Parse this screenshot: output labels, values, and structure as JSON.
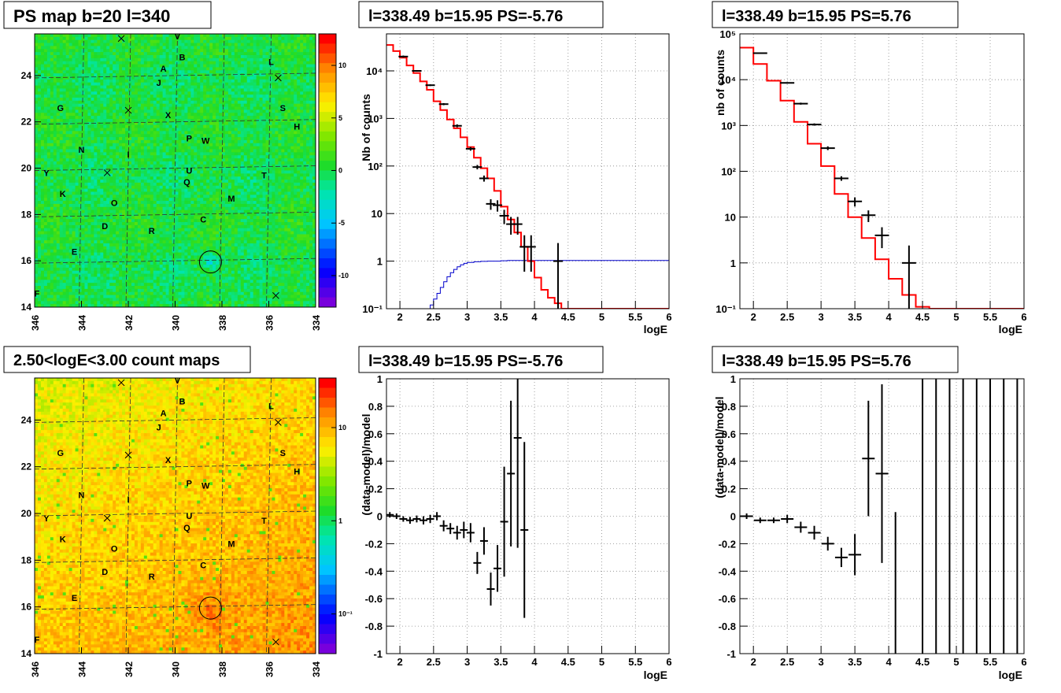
{
  "colors": {
    "frame": "#000000",
    "data_points": "#000000",
    "model_line": "#ff0000",
    "signal_line": "#0000cc",
    "ps_map_base": "#22dd22",
    "count_map_base": "#ff6a1a"
  },
  "panels": {
    "ps_map": {
      "title": "PS map b=20 l=340",
      "x_ticks": [
        "346",
        "344",
        "342",
        "340",
        "338",
        "336",
        "334"
      ],
      "y_ticks": [
        "14",
        "16",
        "18",
        "20",
        "22",
        "24"
      ],
      "colorbar_ticks": [
        "10",
        "5",
        "0",
        "-5",
        "-10"
      ]
    },
    "count_map": {
      "title": "2.50<logE<3.00 count maps",
      "x_ticks": [
        "346",
        "344",
        "342",
        "340",
        "338",
        "336",
        "334"
      ],
      "y_ticks": [
        "14",
        "16",
        "18",
        "20",
        "22",
        "24"
      ],
      "colorbar_ticks": [
        "10",
        "1",
        "10⁻¹"
      ]
    },
    "spectrum_left": {
      "title": "l=338.49 b=15.95 PS=-5.76",
      "xlabel": "logE",
      "ylabel": "Nb of counts",
      "x_ticks": [
        "2",
        "2.5",
        "3",
        "3.5",
        "4",
        "4.5",
        "5",
        "5.5",
        "6"
      ],
      "y_ticks": [
        "10⁻¹",
        "1",
        "10",
        "10²",
        "10³",
        "10⁴"
      ]
    },
    "spectrum_right": {
      "title": "l=338.49 b=15.95 PS=5.76",
      "xlabel": "logE",
      "ylabel": "nb of counts",
      "x_ticks": [
        "2",
        "2.5",
        "3",
        "3.5",
        "4",
        "4.5",
        "5",
        "5.5",
        "6"
      ],
      "y_ticks": [
        "10⁻¹",
        "1",
        "10",
        "10²",
        "10³",
        "10⁴",
        "10⁵"
      ]
    },
    "residual_left": {
      "title": "l=338.49 b=15.95 PS=-5.76",
      "xlabel": "logE",
      "ylabel": "(data-model)/model",
      "x_ticks": [
        "2",
        "2.5",
        "3",
        "3.5",
        "4",
        "4.5",
        "5",
        "5.5",
        "6"
      ],
      "y_ticks": [
        "-1",
        "-0.8",
        "-0.6",
        "-0.4",
        "-0.2",
        "0",
        "0.2",
        "0.4",
        "0.6",
        "0.8",
        "1"
      ]
    },
    "residual_right": {
      "title": "l=338.49 b=15.95 PS=5.76",
      "xlabel": "logE",
      "ylabel": "(data-model)/model",
      "x_ticks": [
        "2",
        "2.5",
        "3",
        "3.5",
        "4",
        "4.5",
        "5",
        "5.5",
        "6"
      ],
      "y_ticks": [
        "-1",
        "-0.8",
        "-0.6",
        "-0.4",
        "-0.2",
        "0",
        "0.2",
        "0.4",
        "0.6",
        "0.8",
        "1"
      ]
    }
  },
  "chart_data": [
    {
      "id": "ps_map",
      "type": "heatmap",
      "title": "PS map b=20 l=340",
      "xlim": [
        346,
        334
      ],
      "ylim": [
        14,
        25.8
      ],
      "zlim": [
        -13,
        13
      ],
      "colorbar_ticks": [
        10,
        5,
        0,
        -5,
        -10
      ],
      "circle": {
        "l": 338.49,
        "b": 15.95
      },
      "labels": [
        {
          "t": "V",
          "l": 339.9,
          "b": 25.7
        },
        {
          "t": "B",
          "l": 339.7,
          "b": 24.8
        },
        {
          "t": "A",
          "l": 340.5,
          "b": 24.3
        },
        {
          "t": "L",
          "l": 335.9,
          "b": 24.6
        },
        {
          "t": "J",
          "l": 340.7,
          "b": 23.7
        },
        {
          "t": "G",
          "l": 344.9,
          "b": 22.6
        },
        {
          "t": "X",
          "l": 340.3,
          "b": 22.3
        },
        {
          "t": "S",
          "l": 335.4,
          "b": 22.6
        },
        {
          "t": "H",
          "l": 334.8,
          "b": 21.8
        },
        {
          "t": "P",
          "l": 339.4,
          "b": 21.3
        },
        {
          "t": "W",
          "l": 338.7,
          "b": 21.2
        },
        {
          "t": "N",
          "l": 344.0,
          "b": 20.8
        },
        {
          "t": "I",
          "l": 342.0,
          "b": 20.6
        },
        {
          "t": "T",
          "l": 336.2,
          "b": 19.7
        },
        {
          "t": "U",
          "l": 339.4,
          "b": 19.9
        },
        {
          "t": "Y",
          "l": 345.5,
          "b": 19.8
        },
        {
          "t": "Q",
          "l": 339.5,
          "b": 19.4
        },
        {
          "t": "K",
          "l": 344.8,
          "b": 18.9
        },
        {
          "t": "M",
          "l": 337.6,
          "b": 18.7
        },
        {
          "t": "O",
          "l": 342.6,
          "b": 18.5
        },
        {
          "t": "C",
          "l": 338.8,
          "b": 17.8
        },
        {
          "t": "D",
          "l": 343.0,
          "b": 17.5
        },
        {
          "t": "R",
          "l": 341.0,
          "b": 17.3
        },
        {
          "t": "E",
          "l": 344.3,
          "b": 16.4
        },
        {
          "t": "F",
          "l": 345.9,
          "b": 14.6
        }
      ],
      "crosses": [
        {
          "l": 342.3,
          "b": 25.6
        },
        {
          "l": 335.6,
          "b": 23.9
        },
        {
          "l": 342.0,
          "b": 22.5
        },
        {
          "l": 342.9,
          "b": 19.8
        },
        {
          "l": 335.7,
          "b": 14.5
        }
      ]
    },
    {
      "id": "count_map",
      "type": "heatmap",
      "title": "2.50<logE<3.00 count maps",
      "xlim": [
        346,
        334
      ],
      "ylim": [
        14,
        25.8
      ],
      "zscale": "log",
      "colorbar_ticks": [
        10,
        1,
        0.1
      ],
      "circle": {
        "l": 338.49,
        "b": 15.95
      },
      "labels": [
        {
          "t": "V",
          "l": 339.9,
          "b": 25.7
        },
        {
          "t": "B",
          "l": 339.7,
          "b": 24.8
        },
        {
          "t": "A",
          "l": 340.5,
          "b": 24.3
        },
        {
          "t": "L",
          "l": 335.9,
          "b": 24.6
        },
        {
          "t": "J",
          "l": 340.7,
          "b": 23.7
        },
        {
          "t": "G",
          "l": 344.9,
          "b": 22.6
        },
        {
          "t": "X",
          "l": 340.3,
          "b": 22.3
        },
        {
          "t": "S",
          "l": 335.4,
          "b": 22.6
        },
        {
          "t": "H",
          "l": 334.8,
          "b": 21.8
        },
        {
          "t": "P",
          "l": 339.4,
          "b": 21.3
        },
        {
          "t": "W",
          "l": 338.7,
          "b": 21.2
        },
        {
          "t": "N",
          "l": 344.0,
          "b": 20.8
        },
        {
          "t": "I",
          "l": 342.0,
          "b": 20.6
        },
        {
          "t": "T",
          "l": 336.2,
          "b": 19.7
        },
        {
          "t": "U",
          "l": 339.4,
          "b": 19.9
        },
        {
          "t": "Y",
          "l": 345.5,
          "b": 19.8
        },
        {
          "t": "Q",
          "l": 339.5,
          "b": 19.4
        },
        {
          "t": "K",
          "l": 344.8,
          "b": 18.9
        },
        {
          "t": "M",
          "l": 337.6,
          "b": 18.7
        },
        {
          "t": "O",
          "l": 342.6,
          "b": 18.5
        },
        {
          "t": "C",
          "l": 338.8,
          "b": 17.8
        },
        {
          "t": "D",
          "l": 343.0,
          "b": 17.5
        },
        {
          "t": "R",
          "l": 341.0,
          "b": 17.3
        },
        {
          "t": "E",
          "l": 344.3,
          "b": 16.4
        },
        {
          "t": "F",
          "l": 345.9,
          "b": 14.6
        }
      ],
      "crosses": [
        {
          "l": 342.3,
          "b": 25.6
        },
        {
          "l": 335.6,
          "b": 23.9
        },
        {
          "l": 342.0,
          "b": 22.5
        },
        {
          "l": 342.9,
          "b": 19.8
        },
        {
          "l": 335.7,
          "b": 14.5
        }
      ]
    },
    {
      "id": "spectrum_left",
      "type": "line",
      "title": "l=338.49 b=15.95 PS=-5.76",
      "xlabel": "logE",
      "ylabel": "Nb of counts",
      "xlim": [
        1.8,
        6
      ],
      "ylim": [
        0.1,
        60000
      ],
      "yscale": "log",
      "grid": true,
      "model": {
        "edges": [
          1.8,
          1.9,
          2.0,
          2.1,
          2.2,
          2.3,
          2.4,
          2.5,
          2.6,
          2.7,
          2.8,
          2.9,
          3.0,
          3.1,
          3.2,
          3.3,
          3.4,
          3.5,
          3.6,
          3.7,
          3.8,
          3.9,
          4.0,
          4.1,
          4.2,
          4.3,
          4.4,
          4.5,
          6.0
        ],
        "values": [
          35000,
          26000,
          19000,
          13000,
          9000,
          6000,
          4000,
          2300,
          1500,
          950,
          620,
          400,
          250,
          150,
          90,
          55,
          30,
          14,
          7.5,
          4,
          2,
          1,
          0.45,
          0.25,
          0.17,
          0.13,
          0.1,
          0.1
        ]
      },
      "signal": {
        "edges": [
          1.8,
          2.4,
          2.45,
          2.5,
          2.55,
          2.6,
          2.65,
          2.7,
          2.75,
          2.8,
          2.85,
          2.9,
          2.95,
          3.0,
          3.1,
          3.2,
          3.3,
          3.4,
          3.5,
          3.6,
          3.7,
          6.0
        ],
        "values": [
          0.09,
          0.1,
          0.12,
          0.16,
          0.21,
          0.28,
          0.37,
          0.47,
          0.57,
          0.67,
          0.76,
          0.84,
          0.9,
          0.94,
          0.97,
          0.99,
          1.0,
          1.0,
          1.02,
          1.03,
          1.03
        ]
      },
      "points": [
        {
          "x": 2.05,
          "y": 20000,
          "lo": 19000,
          "hi": 21000
        },
        {
          "x": 2.25,
          "y": 10000,
          "lo": 9600,
          "hi": 10400
        },
        {
          "x": 2.45,
          "y": 5000,
          "lo": 4800,
          "hi": 5200
        },
        {
          "x": 2.65,
          "y": 2000,
          "lo": 1900,
          "hi": 2100
        },
        {
          "x": 2.85,
          "y": 700,
          "lo": 650,
          "hi": 750
        },
        {
          "x": 3.05,
          "y": 230,
          "lo": 210,
          "hi": 250
        },
        {
          "x": 3.15,
          "y": 95,
          "lo": 85,
          "hi": 105
        },
        {
          "x": 3.25,
          "y": 55,
          "lo": 47,
          "hi": 63
        },
        {
          "x": 3.35,
          "y": 16,
          "lo": 12,
          "hi": 20
        },
        {
          "x": 3.45,
          "y": 15,
          "lo": 11,
          "hi": 19
        },
        {
          "x": 3.55,
          "y": 9,
          "lo": 6,
          "hi": 12
        },
        {
          "x": 3.65,
          "y": 6,
          "lo": 3.6,
          "hi": 8.5
        },
        {
          "x": 3.75,
          "y": 6,
          "lo": 3.6,
          "hi": 8.5
        },
        {
          "x": 3.85,
          "y": 2,
          "lo": 0.6,
          "hi": 3.5
        },
        {
          "x": 3.95,
          "y": 2,
          "lo": 0.6,
          "hi": 3.5
        },
        {
          "x": 4.35,
          "y": 1,
          "lo": 0.1,
          "hi": 2.4
        }
      ]
    },
    {
      "id": "spectrum_right",
      "type": "line",
      "title": "l=338.49 b=15.95 PS=5.76",
      "xlabel": "logE",
      "ylabel": "nb of counts",
      "xlim": [
        1.8,
        6
      ],
      "ylim": [
        0.1,
        100000
      ],
      "yscale": "log",
      "grid": true,
      "model": {
        "edges": [
          1.8,
          2.0,
          2.2,
          2.4,
          2.6,
          2.8,
          3.0,
          3.2,
          3.4,
          3.6,
          3.8,
          4.0,
          4.2,
          4.4,
          4.6,
          4.8,
          6.0
        ],
        "values": [
          50000,
          22000,
          9500,
          3500,
          1200,
          400,
          130,
          32,
          10,
          3.5,
          1.2,
          0.45,
          0.2,
          0.11,
          0.1,
          0.1
        ]
      },
      "points": [
        {
          "x": 2.1,
          "y": 38000,
          "lo": 37000,
          "hi": 39000
        },
        {
          "x": 2.5,
          "y": 8500,
          "lo": 8200,
          "hi": 8800
        },
        {
          "x": 2.7,
          "y": 3000,
          "lo": 2850,
          "hi": 3150
        },
        {
          "x": 2.9,
          "y": 1050,
          "lo": 990,
          "hi": 1110
        },
        {
          "x": 3.1,
          "y": 320,
          "lo": 290,
          "hi": 350
        },
        {
          "x": 3.3,
          "y": 70,
          "lo": 62,
          "hi": 78
        },
        {
          "x": 3.5,
          "y": 22,
          "lo": 17,
          "hi": 27
        },
        {
          "x": 3.7,
          "y": 11,
          "lo": 7.8,
          "hi": 14
        },
        {
          "x": 3.9,
          "y": 4,
          "lo": 2.1,
          "hi": 6
        },
        {
          "x": 4.3,
          "y": 1,
          "lo": 0.1,
          "hi": 2.4
        }
      ]
    },
    {
      "id": "residual_left",
      "type": "scatter",
      "title": "l=338.49 b=15.95 PS=-5.76",
      "xlabel": "logE",
      "ylabel": "(data-model)/model",
      "xlim": [
        1.8,
        6
      ],
      "ylim": [
        -1,
        1
      ],
      "grid": true,
      "points": [
        {
          "x": 1.85,
          "y": 0.01,
          "e": 0.02
        },
        {
          "x": 1.95,
          "y": 0.0,
          "e": 0.02
        },
        {
          "x": 2.05,
          "y": -0.02,
          "e": 0.02
        },
        {
          "x": 2.15,
          "y": -0.03,
          "e": 0.025
        },
        {
          "x": 2.25,
          "y": -0.02,
          "e": 0.025
        },
        {
          "x": 2.35,
          "y": -0.03,
          "e": 0.03
        },
        {
          "x": 2.45,
          "y": -0.02,
          "e": 0.03
        },
        {
          "x": 2.55,
          "y": 0.0,
          "e": 0.03
        },
        {
          "x": 2.65,
          "y": -0.07,
          "e": 0.04
        },
        {
          "x": 2.75,
          "y": -0.09,
          "e": 0.04
        },
        {
          "x": 2.85,
          "y": -0.12,
          "e": 0.05
        },
        {
          "x": 2.95,
          "y": -0.1,
          "e": 0.06
        },
        {
          "x": 3.05,
          "y": -0.12,
          "e": 0.07
        },
        {
          "x": 3.15,
          "y": -0.34,
          "e": 0.08
        },
        {
          "x": 3.25,
          "y": -0.18,
          "e": 0.1
        },
        {
          "x": 3.35,
          "y": -0.53,
          "e": 0.12
        },
        {
          "x": 3.45,
          "y": -0.38,
          "e": 0.17
        },
        {
          "x": 3.55,
          "y": -0.04,
          "e": 0.4
        },
        {
          "x": 3.65,
          "y": 0.31,
          "e": 0.53
        },
        {
          "x": 3.75,
          "y": 0.57,
          "e": 0.8
        },
        {
          "x": 3.85,
          "y": -0.1,
          "e": 0.64
        }
      ]
    },
    {
      "id": "residual_right",
      "type": "scatter",
      "title": "l=338.49 b=15.95 PS=5.76",
      "xlabel": "logE",
      "ylabel": "(data-model)/model",
      "xlim": [
        1.8,
        6
      ],
      "ylim": [
        -1,
        1
      ],
      "grid": true,
      "points": [
        {
          "x": 1.9,
          "y": 0.0,
          "e": 0.02
        },
        {
          "x": 2.1,
          "y": -0.03,
          "e": 0.02
        },
        {
          "x": 2.3,
          "y": -0.03,
          "e": 0.02
        },
        {
          "x": 2.5,
          "y": -0.02,
          "e": 0.03
        },
        {
          "x": 2.7,
          "y": -0.08,
          "e": 0.04
        },
        {
          "x": 2.9,
          "y": -0.12,
          "e": 0.05
        },
        {
          "x": 3.1,
          "y": -0.2,
          "e": 0.05
        },
        {
          "x": 3.3,
          "y": -0.3,
          "e": 0.07
        },
        {
          "x": 3.5,
          "y": -0.28,
          "e": 0.15
        },
        {
          "x": 3.7,
          "y": 0.42,
          "e": 0.42
        },
        {
          "x": 3.9,
          "y": 0.31,
          "e": 0.65
        }
      ],
      "bars": [
        {
          "x": 4.1,
          "top": 0.03
        },
        {
          "x": 4.5,
          "top": 1
        },
        {
          "x": 4.7,
          "top": 1
        },
        {
          "x": 4.9,
          "top": 1
        },
        {
          "x": 5.1,
          "top": 1
        },
        {
          "x": 5.3,
          "top": 1
        },
        {
          "x": 5.5,
          "top": 1
        },
        {
          "x": 5.7,
          "top": 1
        },
        {
          "x": 5.9,
          "top": 1
        }
      ]
    }
  ]
}
